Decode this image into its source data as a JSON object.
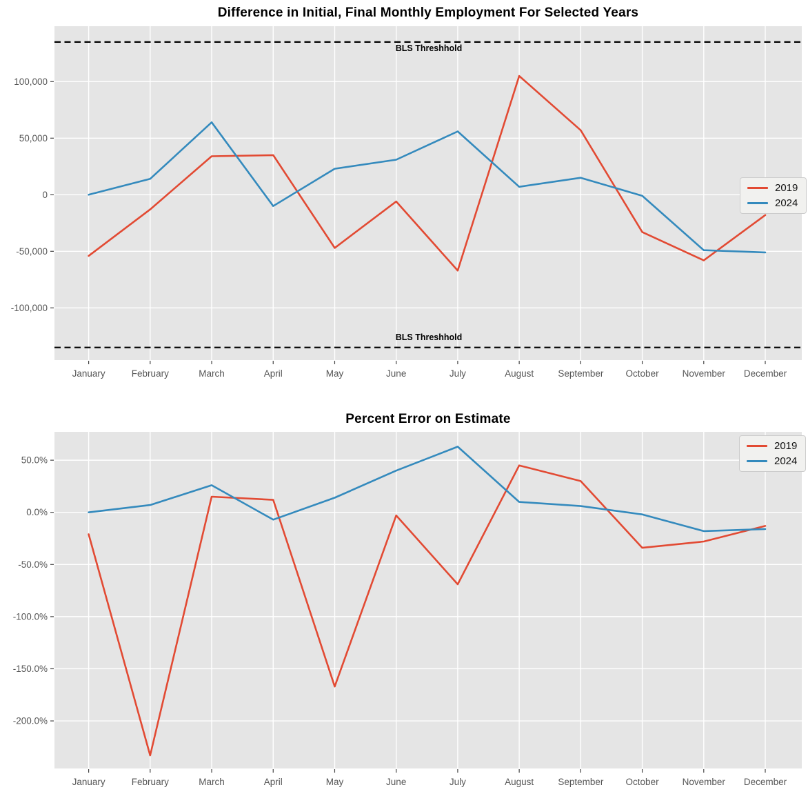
{
  "figure": {
    "background": "#ffffff",
    "axes_background": "#e5e5e5",
    "grid_color": "#ffffff",
    "tick_label_color": "#555555",
    "threshold_color": "#000000"
  },
  "chart_data": [
    {
      "type": "line",
      "title": "Difference in Initial, Final Monthly Employment For Selected Years",
      "categories": [
        "January",
        "February",
        "March",
        "April",
        "May",
        "June",
        "July",
        "August",
        "September",
        "October",
        "November",
        "December"
      ],
      "series": [
        {
          "name": "2019",
          "color": "#E24A33",
          "values": [
            -54000,
            -13000,
            34000,
            35000,
            -47000,
            -6000,
            -67000,
            105000,
            57000,
            -33000,
            -58000,
            -18000
          ]
        },
        {
          "name": "2024",
          "color": "#348ABD",
          "values": [
            0,
            14000,
            64000,
            -10000,
            23000,
            31000,
            56000,
            7000,
            15000,
            -1000,
            -49000,
            -51000
          ]
        }
      ],
      "y_ticks": [
        {
          "value": 100000,
          "label": "100,000"
        },
        {
          "value": 50000,
          "label": "50,000"
        },
        {
          "value": 0,
          "label": "0"
        },
        {
          "value": -50000,
          "label": "-50,000"
        },
        {
          "value": -100000,
          "label": "-100,000"
        }
      ],
      "ylim": [
        -146160,
        148960
      ],
      "grid": true,
      "thresholds": [
        {
          "value": 135000,
          "label": "BLS Threshhold"
        },
        {
          "value": -135000,
          "label": "BLS Threshhold"
        }
      ],
      "legend": {
        "position": "center-right",
        "entries": [
          "2019",
          "2024"
        ]
      }
    },
    {
      "type": "line",
      "title": "Percent Error on Estimate",
      "categories": [
        "January",
        "February",
        "March",
        "April",
        "May",
        "June",
        "July",
        "August",
        "September",
        "October",
        "November",
        "December"
      ],
      "unit": "%",
      "series": [
        {
          "name": "2019",
          "color": "#E24A33",
          "values": [
            -21,
            -233,
            15,
            12,
            -167,
            -3,
            -69,
            45,
            30,
            -34,
            -28,
            -13
          ]
        },
        {
          "name": "2024",
          "color": "#348ABD",
          "values": [
            0,
            7,
            26,
            -7,
            14,
            40,
            63,
            10,
            6,
            -2,
            -18,
            -16
          ]
        }
      ],
      "y_ticks": [
        {
          "value": 50,
          "label": "50.0%"
        },
        {
          "value": 0,
          "label": "0.0%"
        },
        {
          "value": -50,
          "label": "-50.0%"
        },
        {
          "value": -100,
          "label": "-100.0%"
        },
        {
          "value": -150,
          "label": "-150.0%"
        },
        {
          "value": -200,
          "label": "-200.0%"
        }
      ],
      "ylim": [
        -245.6,
        77.2
      ],
      "grid": true,
      "thresholds": [],
      "legend": {
        "position": "top-right",
        "entries": [
          "2019",
          "2024"
        ]
      }
    }
  ]
}
